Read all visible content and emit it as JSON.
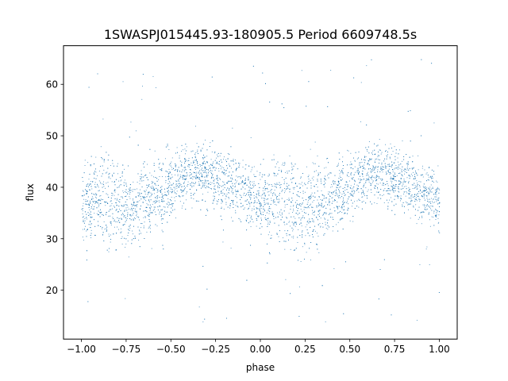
{
  "chart_data": {
    "type": "scatter",
    "title": "1SWASPJ015445.93-180905.5 Period 6609748.5s",
    "xlabel": "phase",
    "ylabel": "flux",
    "xlim": [
      -1.1,
      1.1
    ],
    "ylim": [
      10.5,
      67.5
    ],
    "xticks": [
      -1.0,
      -0.75,
      -0.5,
      -0.25,
      0.0,
      0.25,
      0.5,
      0.75,
      1.0
    ],
    "xtick_labels": [
      "−1.00",
      "−0.75",
      "−0.50",
      "−0.25",
      "0.00",
      "0.25",
      "0.50",
      "0.75",
      "1.00"
    ],
    "yticks": [
      20,
      30,
      40,
      50,
      60
    ],
    "ytick_labels": [
      "20",
      "30",
      "40",
      "50",
      "60"
    ],
    "grid": false,
    "marker_color": "#1f77b4",
    "series": [
      {
        "description": "phase-folded light curve, shown twice over phase -1..1",
        "x": [
          -1.0,
          -0.95,
          -0.9,
          -0.85,
          -0.8,
          -0.75,
          -0.7,
          -0.65,
          -0.6,
          -0.55,
          -0.5,
          -0.45,
          -0.4,
          -0.35,
          -0.3,
          -0.25,
          -0.2,
          -0.15,
          -0.1,
          -0.05,
          0.0,
          0.05,
          0.1,
          0.15,
          0.2,
          0.25,
          0.3,
          0.35,
          0.4,
          0.45,
          0.5,
          0.55,
          0.6,
          0.65,
          0.7,
          0.75,
          0.8,
          0.85,
          0.9,
          0.95,
          1.0
        ],
        "y_median": [
          37,
          37.5,
          38,
          37.5,
          37,
          36,
          36.5,
          37.5,
          38.5,
          39,
          40.5,
          41.5,
          42.5,
          43,
          42.5,
          42,
          41,
          40,
          39.5,
          38.5,
          37,
          37.5,
          38,
          37.5,
          37,
          36,
          36.5,
          37.5,
          38.5,
          39,
          40.5,
          41.5,
          42.5,
          43,
          42.5,
          42,
          41,
          40,
          39.5,
          38.5,
          37
        ],
        "y_low": [
          31,
          29,
          28,
          27,
          26,
          25,
          28,
          30,
          32,
          33,
          35,
          35,
          36,
          36,
          35,
          35,
          34,
          33,
          32,
          31,
          31,
          29,
          28,
          27,
          26,
          25,
          28,
          30,
          32,
          33,
          35,
          35,
          36,
          36,
          35,
          35,
          34,
          33,
          32,
          31,
          31
        ],
        "y_high": [
          43,
          45,
          47,
          46,
          44,
          43,
          45,
          46,
          46,
          47,
          47,
          48,
          48,
          48,
          48,
          48,
          47,
          46,
          45,
          44,
          43,
          45,
          47,
          46,
          44,
          43,
          45,
          46,
          46,
          47,
          47,
          48,
          48,
          48,
          48,
          48,
          47,
          46,
          45,
          44,
          43
        ],
        "y_outlier_min": 13,
        "y_outlier_max": 65
      }
    ]
  }
}
